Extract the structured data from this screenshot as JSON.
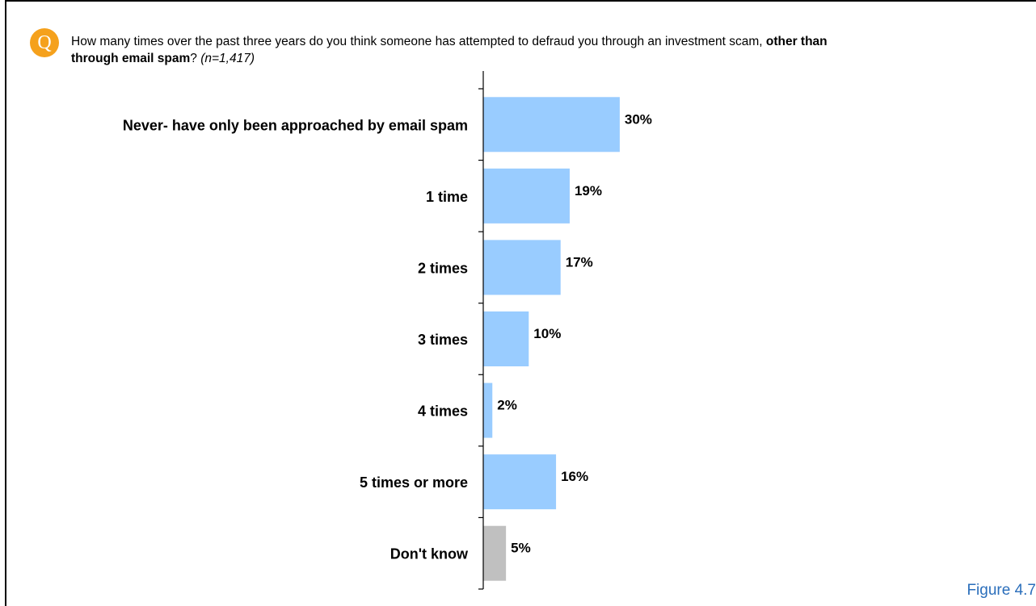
{
  "question": {
    "badge": "Q",
    "text": "How many times over the past three years do you think someone has attempted to defraud you through an investment scam, ",
    "bold": "other than through email spam",
    "mark": "? ",
    "sample": "(n=1,417)"
  },
  "figure_label": "Figure 4.7",
  "chart_data": {
    "type": "bar",
    "orientation": "horizontal",
    "categories": [
      "Never- have only been approached by email spam",
      "1 time",
      "2 times",
      "3 times",
      "4 times",
      "5 times or more",
      "Don't know"
    ],
    "values": [
      30,
      19,
      17,
      10,
      2,
      16,
      5
    ],
    "value_labels": [
      "30%",
      "19%",
      "17%",
      "10%",
      "2%",
      "16%",
      "5%"
    ],
    "colors": [
      "#99ccff",
      "#99ccff",
      "#99ccff",
      "#99ccff",
      "#99ccff",
      "#99ccff",
      "#c0c0c0"
    ],
    "unit": "%"
  }
}
